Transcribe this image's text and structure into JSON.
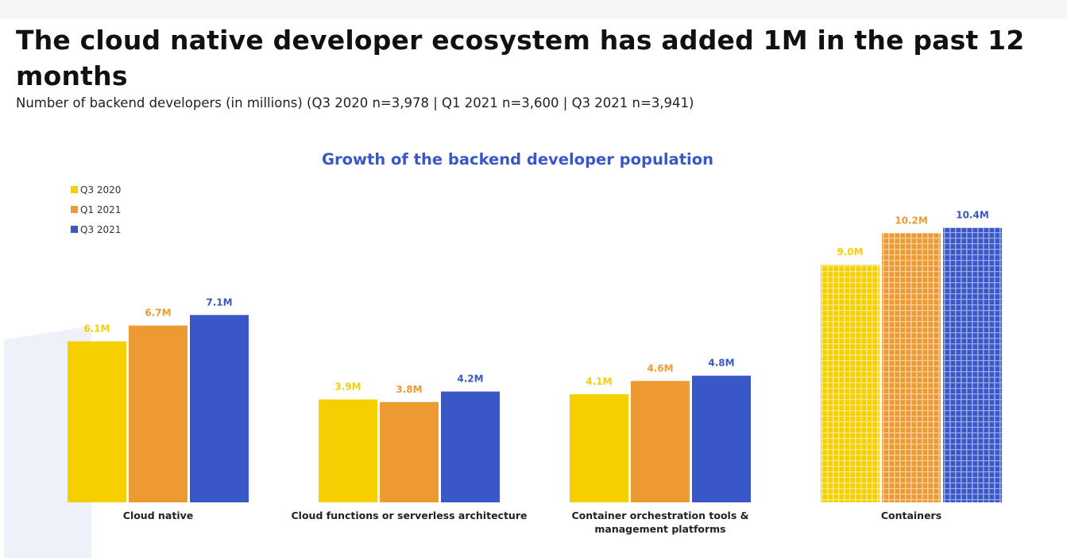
{
  "title": "The cloud native developer ecosystem has added 1M in the past 12 months",
  "subtitle": "Number of backend developers (in millions) (Q3 2020 n=3,978 | Q1 2021 n=3,600 | Q3 2021 n=3,941)",
  "chart_data": {
    "type": "bar",
    "title": "Growth of the backend developer population",
    "categories": [
      "Cloud native",
      "Cloud functions or serverless architecture",
      "Container orchestration tools & management platforms",
      "Containers"
    ],
    "series": [
      {
        "name": "Q3 2020",
        "color": "#f5cf00",
        "values": [
          6.1,
          3.9,
          4.1,
          9.0
        ],
        "labels": [
          "6.1M",
          "3.9M",
          "4.1M",
          "9.0M"
        ]
      },
      {
        "name": "Q1 2021",
        "color": "#ee9a33",
        "values": [
          6.7,
          3.8,
          4.6,
          10.2
        ],
        "labels": [
          "6.7M",
          "3.8M",
          "4.6M",
          "10.2M"
        ]
      },
      {
        "name": "Q3 2021",
        "color": "#3a57c8",
        "values": [
          7.1,
          4.2,
          4.8,
          10.4
        ],
        "labels": [
          "7.1M",
          "4.2M",
          "4.8M",
          "10.4M"
        ]
      }
    ],
    "patterned_category": "Containers",
    "ylim": [
      0,
      10.5
    ],
    "legend": "top-left",
    "grid": false
  }
}
